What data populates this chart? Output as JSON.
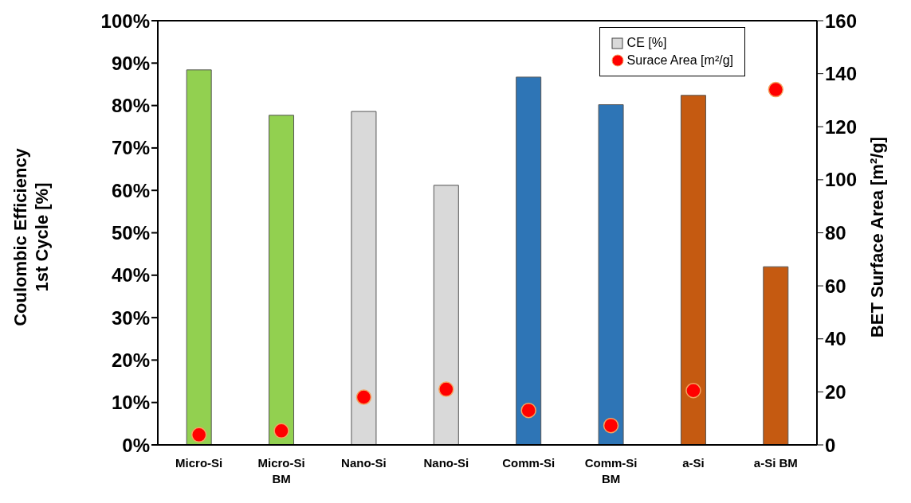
{
  "chart_data": {
    "type": "bar",
    "ylabel": "Coulombic Efficiency\n1st Cycle [%]",
    "y2label": "BET Surface Area [m²/g]",
    "categories": [
      "Micro-Si",
      "Micro-Si BM",
      "Nano-Si",
      "Nano-Si",
      "Comm-Si",
      "Comm-Si BM",
      "a-Si",
      "a-Si BM"
    ],
    "series": [
      {
        "name": "CE [%]",
        "color": "#d9d9d9",
        "colors": [
          "#92d050",
          "#92d050",
          "#d9d9d9",
          "#d9d9d9",
          "#2e75b6",
          "#2e75b6",
          "#c55a11",
          "#c55a11"
        ],
        "values": [
          88.4,
          77.7,
          78.6,
          61.2,
          86.7,
          80.2,
          82.4,
          42.0
        ]
      },
      {
        "name": "Surace Area [m²/g]",
        "type": "scatter",
        "axis": "y2",
        "color": "#ff0000",
        "marker": "circle",
        "values": [
          3.8,
          5.3,
          18,
          21,
          13,
          7.3,
          20.5,
          134
        ]
      }
    ],
    "ylim": [
      0,
      100
    ],
    "yticks": [
      {
        "value": 0,
        "label": "0%"
      },
      {
        "value": 10,
        "label": "10%"
      },
      {
        "value": 20,
        "label": "20%"
      },
      {
        "value": 30,
        "label": "30%"
      },
      {
        "value": 40,
        "label": "40%"
      },
      {
        "value": 50,
        "label": "50%"
      },
      {
        "value": 60,
        "label": "60%"
      },
      {
        "value": 70,
        "label": "70%"
      },
      {
        "value": 80,
        "label": "80%"
      },
      {
        "value": 90,
        "label": "90%"
      },
      {
        "value": 100,
        "label": "100%"
      }
    ],
    "y2lim": [
      0,
      160
    ],
    "y2ticks": [
      0,
      20,
      40,
      60,
      80,
      100,
      120,
      140,
      160
    ],
    "grid": false,
    "legend": "top right"
  }
}
